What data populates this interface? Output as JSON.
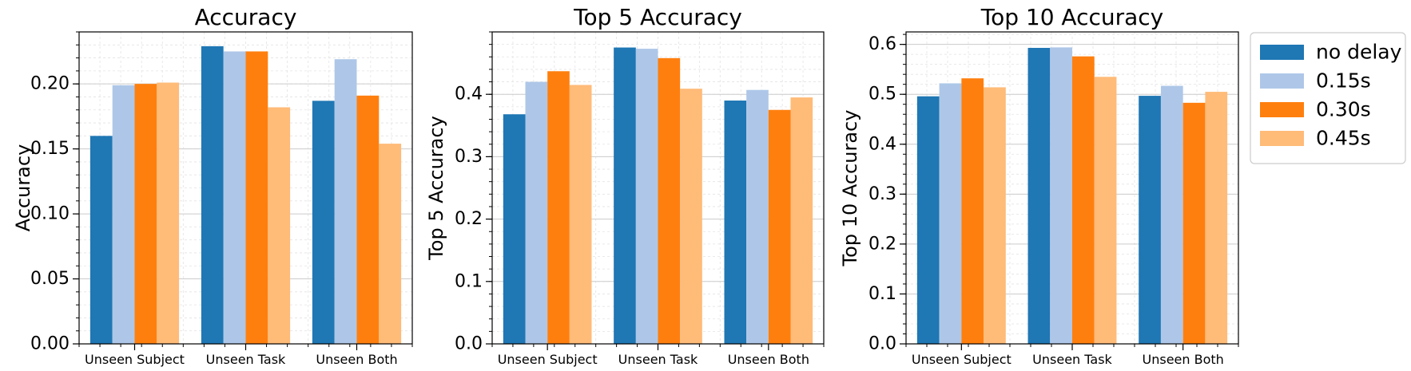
{
  "colors": {
    "series": [
      "#1f77b4",
      "#aec7e8",
      "#ff7f0e",
      "#ffbb78"
    ],
    "grid_major": "#cccccc",
    "grid_minor": "#e3e3e3",
    "axis": "#000000"
  },
  "legend": {
    "placement": "outside-right",
    "entries": [
      "no delay",
      "0.15s",
      "0.30s",
      "0.45s"
    ]
  },
  "chart_data": [
    {
      "type": "bar",
      "title": "Accuracy",
      "xlabel": "",
      "ylabel": "Accuracy",
      "categories": [
        "Unseen Subject",
        "Unseen Task",
        "Unseen Both"
      ],
      "ylim": [
        0,
        0.24
      ],
      "yticks": [
        0.0,
        0.05,
        0.1,
        0.15,
        0.2
      ],
      "ytick_labels": [
        "0.00",
        "0.05",
        "0.10",
        "0.15",
        "0.20"
      ],
      "grid": true,
      "series": [
        {
          "name": "no delay",
          "values": [
            0.16,
            0.229,
            0.187
          ]
        },
        {
          "name": "0.15s",
          "values": [
            0.199,
            0.225,
            0.219
          ]
        },
        {
          "name": "0.30s",
          "values": [
            0.2,
            0.225,
            0.191
          ]
        },
        {
          "name": "0.45s",
          "values": [
            0.201,
            0.182,
            0.154
          ]
        }
      ]
    },
    {
      "type": "bar",
      "title": "Top 5 Accuracy",
      "xlabel": "",
      "ylabel": "Top 5 Accuracy",
      "categories": [
        "Unseen Subject",
        "Unseen Task",
        "Unseen Both"
      ],
      "ylim": [
        0,
        0.5
      ],
      "yticks": [
        0.0,
        0.1,
        0.2,
        0.3,
        0.4
      ],
      "ytick_labels": [
        "0.0",
        "0.1",
        "0.2",
        "0.3",
        "0.4"
      ],
      "grid": true,
      "series": [
        {
          "name": "no delay",
          "values": [
            0.368,
            0.475,
            0.39
          ]
        },
        {
          "name": "0.15s",
          "values": [
            0.42,
            0.473,
            0.407
          ]
        },
        {
          "name": "0.30s",
          "values": [
            0.437,
            0.458,
            0.375
          ]
        },
        {
          "name": "0.45s",
          "values": [
            0.415,
            0.409,
            0.395
          ]
        }
      ]
    },
    {
      "type": "bar",
      "title": "Top 10 Accuracy",
      "xlabel": "",
      "ylabel": "Top 10 Accuracy",
      "categories": [
        "Unseen Subject",
        "Unseen Task",
        "Unseen Both"
      ],
      "ylim": [
        0,
        0.625
      ],
      "yticks": [
        0.0,
        0.1,
        0.2,
        0.3,
        0.4,
        0.5,
        0.6
      ],
      "ytick_labels": [
        "0.0",
        "0.1",
        "0.2",
        "0.3",
        "0.4",
        "0.5",
        "0.6"
      ],
      "grid": true,
      "series": [
        {
          "name": "no delay",
          "values": [
            0.496,
            0.593,
            0.497
          ]
        },
        {
          "name": "0.15s",
          "values": [
            0.522,
            0.594,
            0.517
          ]
        },
        {
          "name": "0.30s",
          "values": [
            0.532,
            0.576,
            0.483
          ]
        },
        {
          "name": "0.45s",
          "values": [
            0.514,
            0.535,
            0.505
          ]
        }
      ]
    }
  ]
}
